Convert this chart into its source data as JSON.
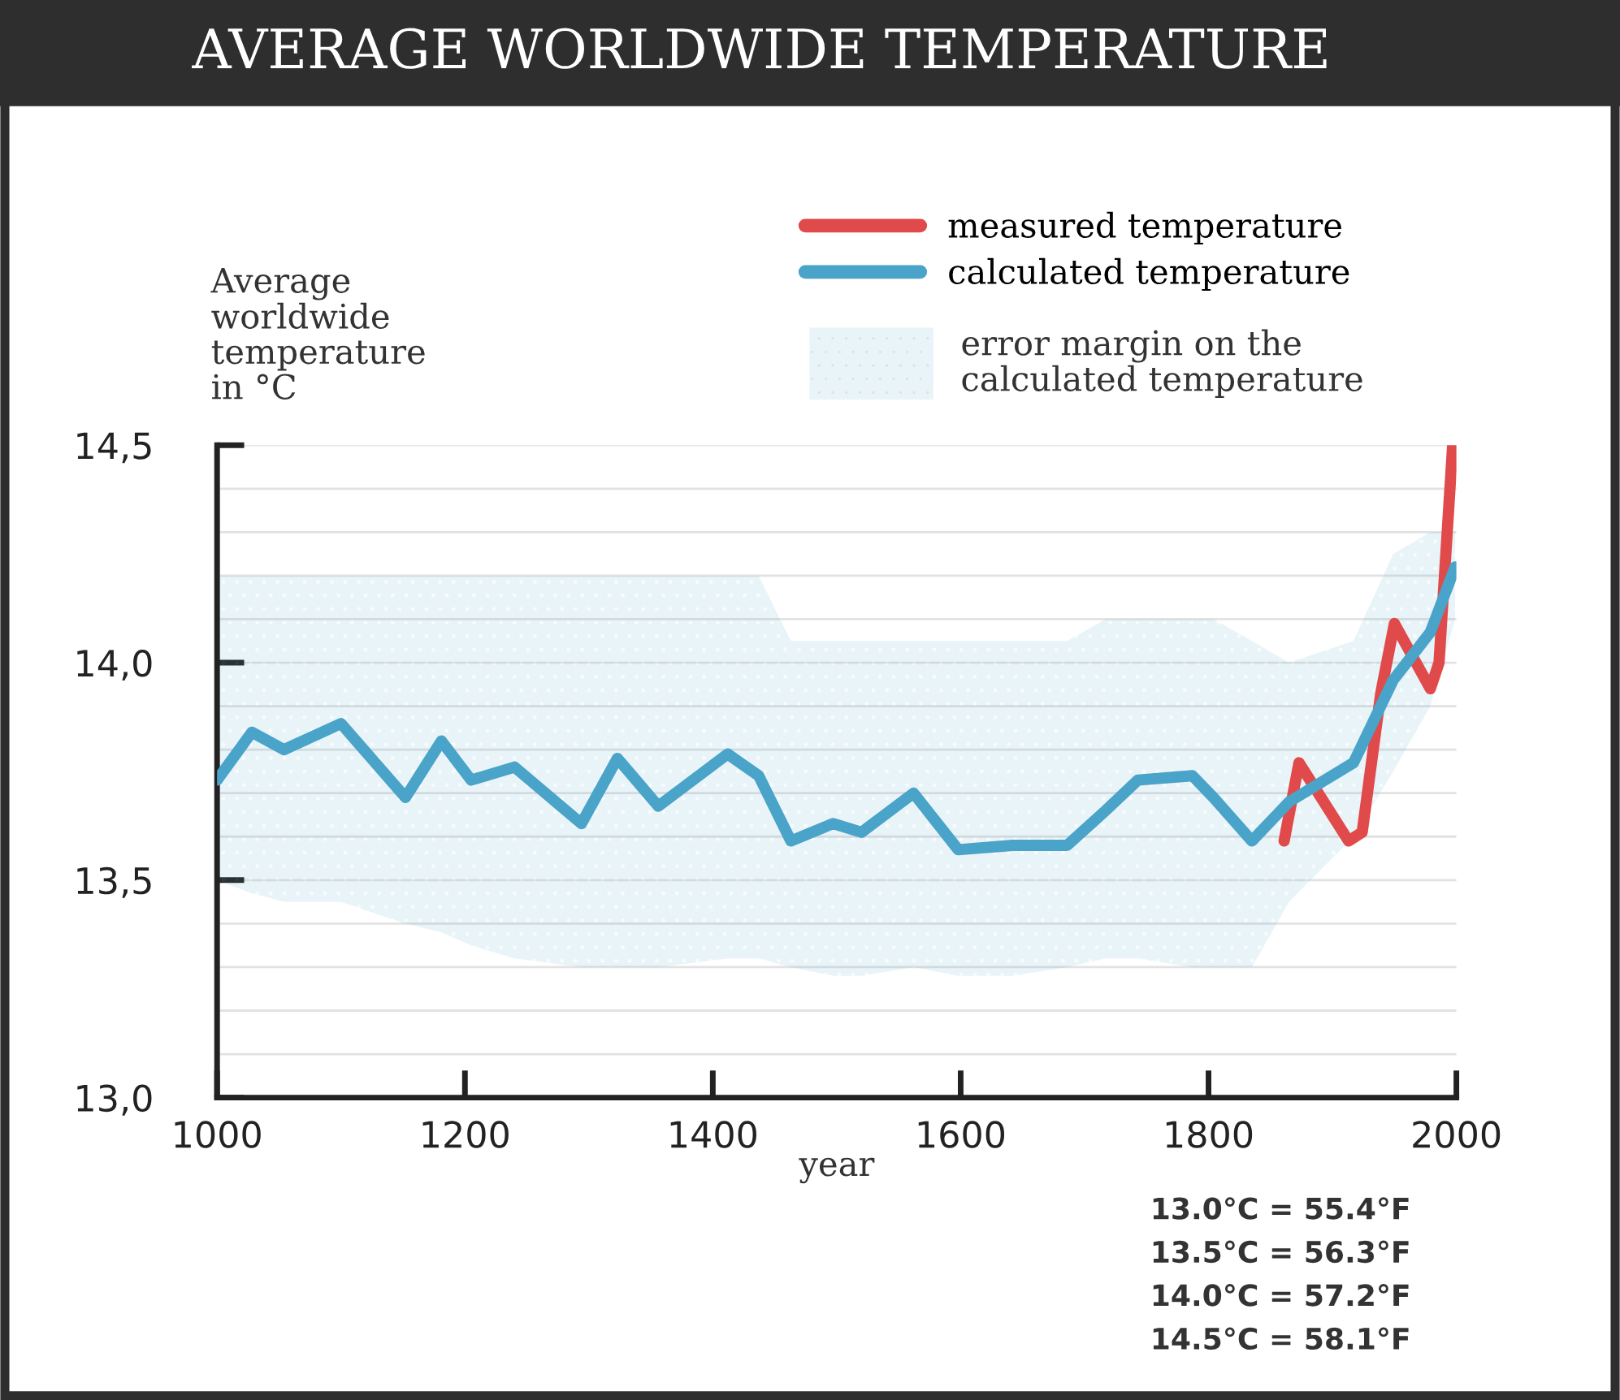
{
  "chart_data": {
    "type": "line",
    "title": "AVERAGE WORLDWIDE TEMPERATURE",
    "xlabel": "year",
    "ylabel": "Average\nworldwide\ntemperature\nin °C",
    "xlim": [
      1000,
      2000
    ],
    "xticks": [
      1000,
      1200,
      1400,
      1600,
      1800,
      2000
    ],
    "ylim": [
      13.0,
      14.5
    ],
    "yticks": [
      {
        "value": 13.0,
        "label": "13,0"
      },
      {
        "value": 13.1,
        "label": null
      },
      {
        "value": 13.2,
        "label": null
      },
      {
        "value": 13.3,
        "label": null
      },
      {
        "value": 13.4,
        "label": null
      },
      {
        "value": 13.5,
        "label": "13,5"
      },
      {
        "value": 13.6,
        "label": null
      },
      {
        "value": 13.7,
        "label": null
      },
      {
        "value": 13.8,
        "label": null
      },
      {
        "value": 13.9,
        "label": null
      },
      {
        "value": 14.0,
        "label": "14,0"
      },
      {
        "value": 14.1,
        "label": null
      },
      {
        "value": 14.2,
        "label": null
      },
      {
        "value": 14.3,
        "label": null
      },
      {
        "value": 14.4,
        "label": null
      },
      {
        "value": 14.5,
        "label": "14,5"
      }
    ],
    "grid": "y",
    "legend": "top right",
    "line_style": "solid",
    "marker": "none",
    "series": [
      {
        "name": "measured temperature",
        "color": "#e04a4a",
        "x": [
          1861,
          1873,
          1913,
          1924,
          1939,
          1950,
          1979,
          1986,
          1997
        ],
        "values": [
          13.59,
          13.77,
          13.59,
          13.61,
          13.93,
          14.09,
          13.94,
          14.0,
          14.5
        ]
      },
      {
        "name": "calculated temperature",
        "color": "#4aa3c8",
        "x": [
          1000,
          1028,
          1054,
          1100,
          1152,
          1181,
          1205,
          1240,
          1294,
          1323,
          1356,
          1412,
          1437,
          1463,
          1497,
          1520,
          1562,
          1598,
          1642,
          1686,
          1717,
          1743,
          1787,
          1804,
          1835,
          1865,
          1917,
          1949,
          1979,
          1999
        ],
        "values": [
          13.73,
          13.84,
          13.8,
          13.86,
          13.69,
          13.82,
          13.73,
          13.76,
          13.63,
          13.78,
          13.67,
          13.79,
          13.74,
          13.59,
          13.63,
          13.61,
          13.7,
          13.57,
          13.58,
          13.58,
          13.66,
          13.73,
          13.74,
          13.69,
          13.59,
          13.68,
          13.77,
          13.96,
          14.07,
          14.22
        ],
        "upper": [
          14.2,
          14.2,
          14.2,
          14.2,
          14.2,
          14.2,
          14.2,
          14.2,
          14.2,
          14.2,
          14.2,
          14.2,
          14.2,
          14.05,
          14.05,
          14.05,
          14.05,
          14.05,
          14.05,
          14.05,
          14.1,
          14.1,
          14.1,
          14.1,
          14.05,
          14.0,
          14.05,
          14.25,
          14.3,
          14.3
        ],
        "lower": [
          13.5,
          13.47,
          13.45,
          13.45,
          13.4,
          13.38,
          13.35,
          13.32,
          13.3,
          13.3,
          13.3,
          13.32,
          13.32,
          13.3,
          13.28,
          13.28,
          13.3,
          13.28,
          13.28,
          13.3,
          13.32,
          13.32,
          13.3,
          13.3,
          13.3,
          13.45,
          13.6,
          13.75,
          13.9,
          14.1
        ]
      }
    ],
    "annotations": [
      "error margin on the\ncalculated temperature",
      "13.0°C = 55.4°F",
      "13.5°C = 56.3°F",
      "14.0°C = 57.2°F",
      "14.5°C = 58.1°F"
    ]
  }
}
